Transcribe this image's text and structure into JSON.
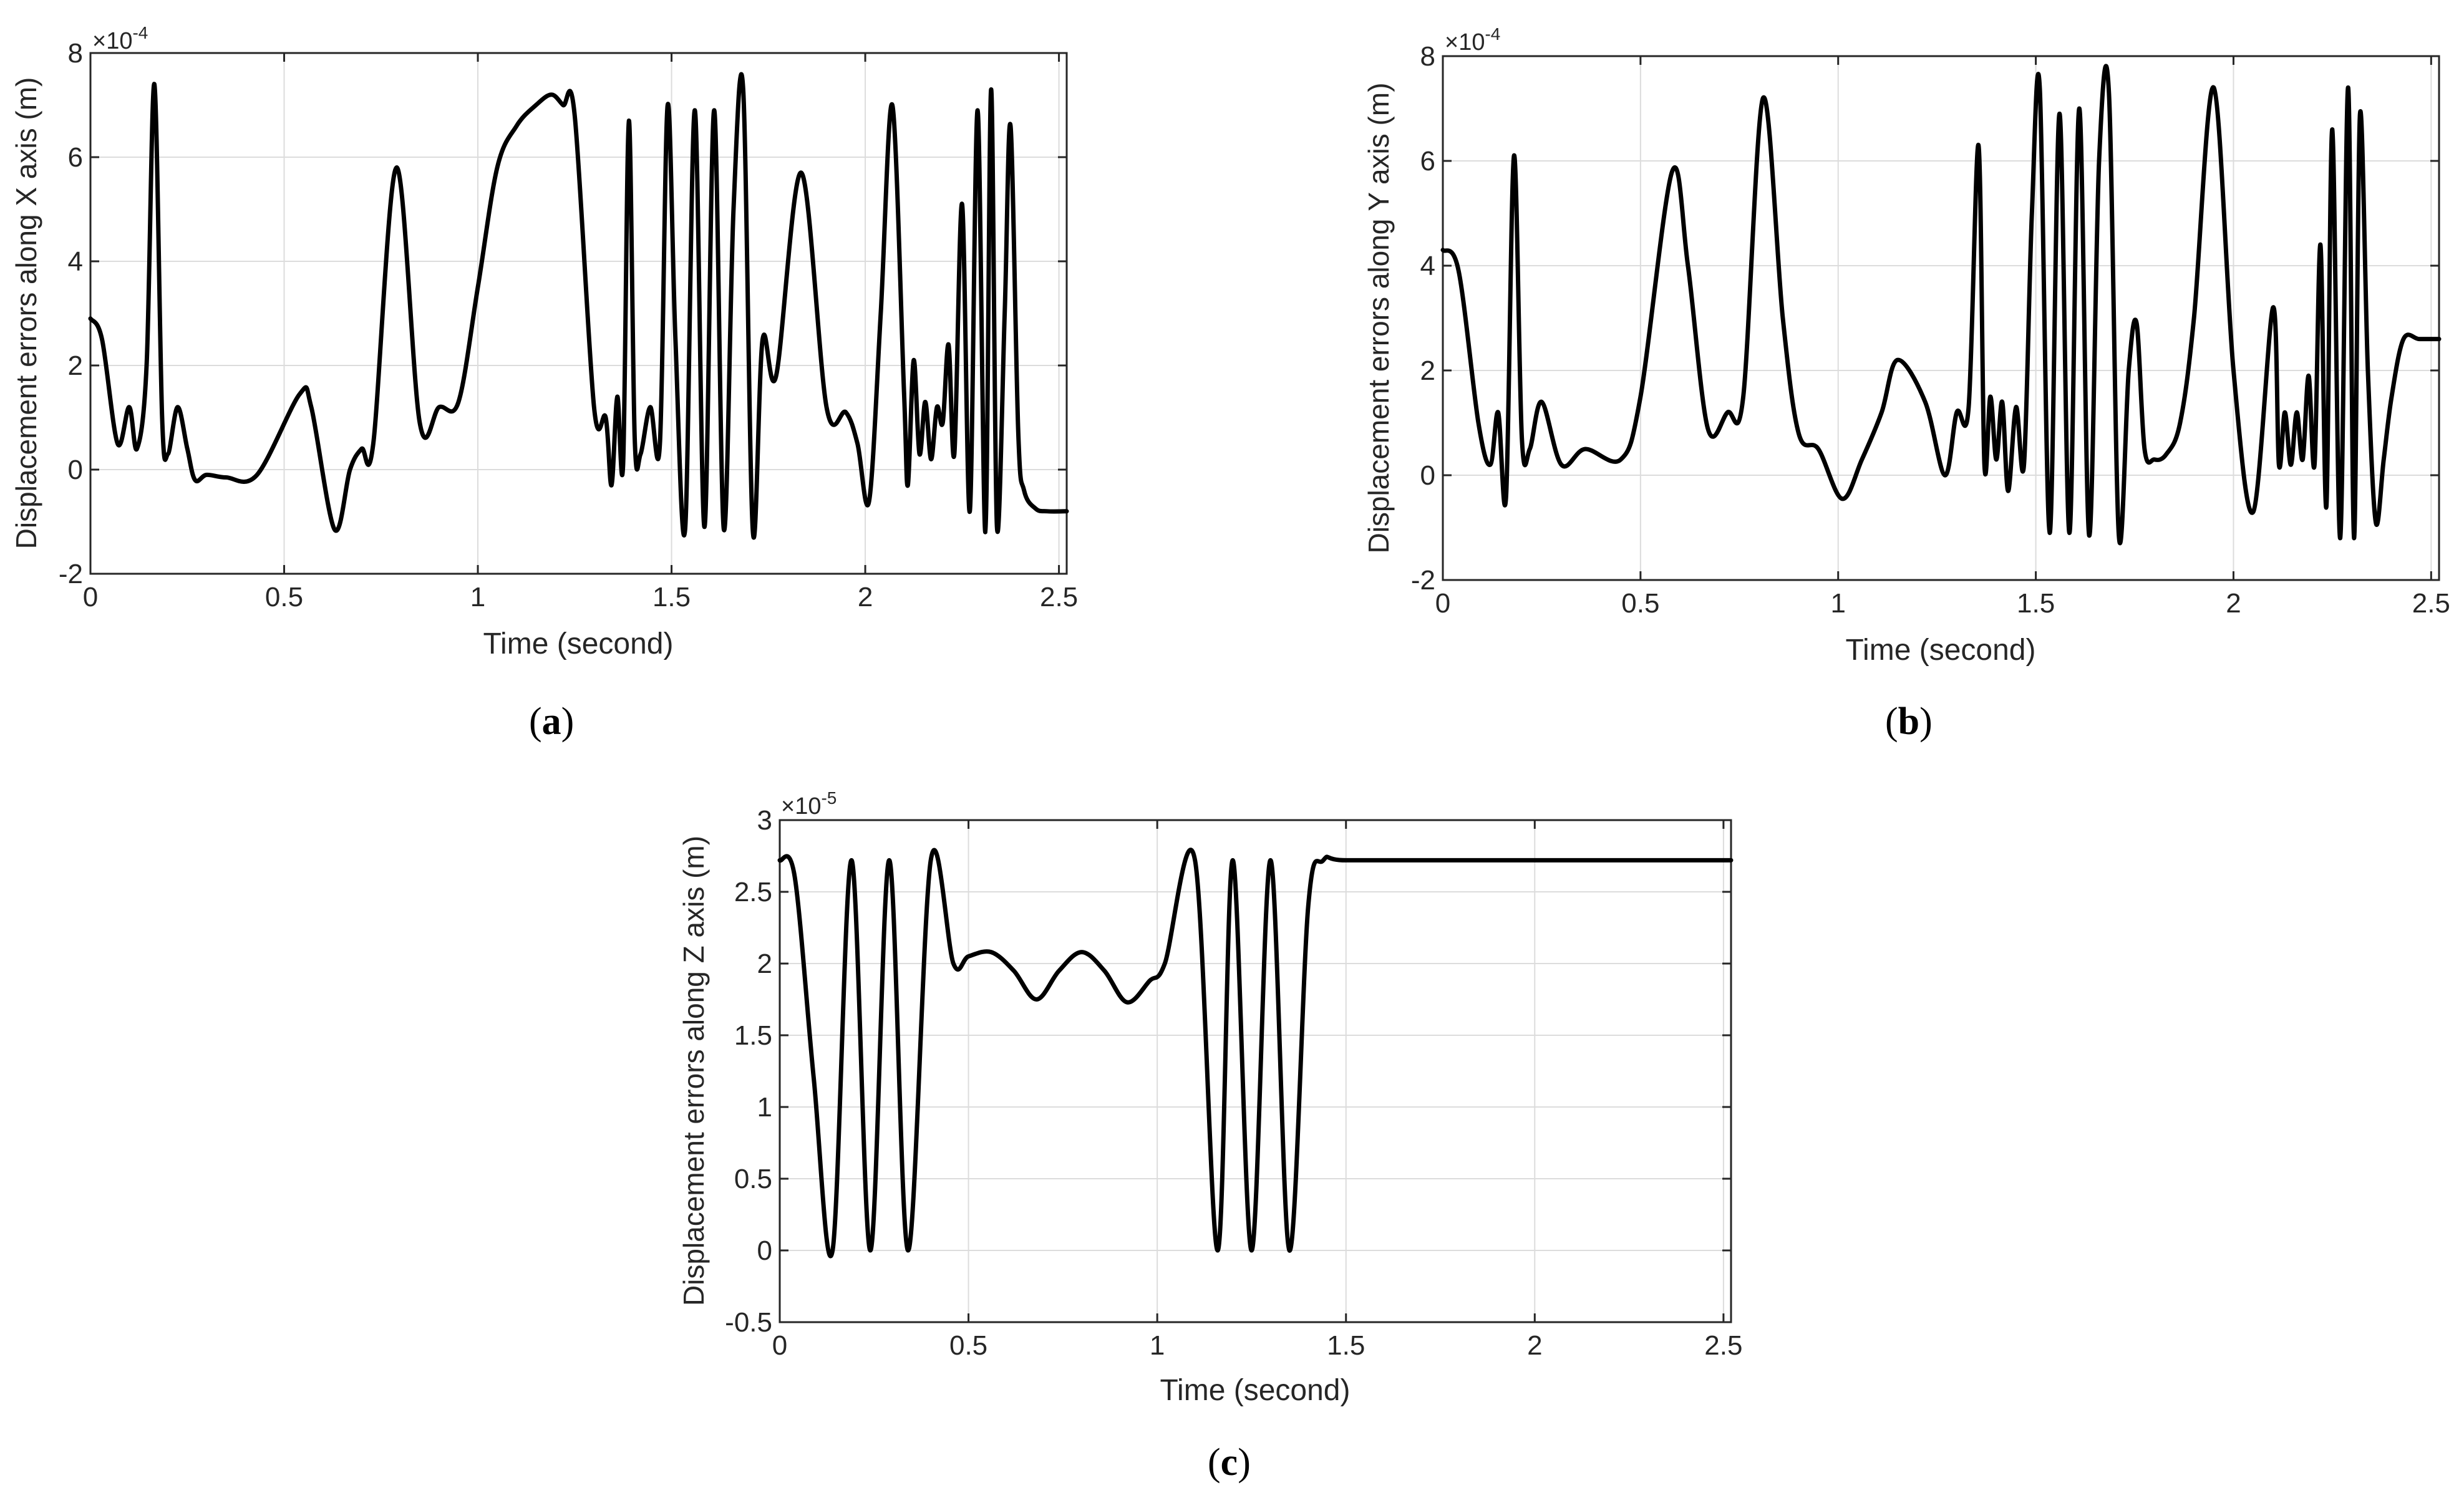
{
  "captions": {
    "a": "a",
    "b": "b",
    "c": "c"
  },
  "chart_data": [
    {
      "id": "a",
      "type": "line",
      "xlabel": "Time (second)",
      "ylabel": "Displacement errors along X axis (m)",
      "exponent_label": "×10",
      "exponent": "-4",
      "xlim": [
        0,
        2.52
      ],
      "ylim": [
        -2,
        8
      ],
      "xticks": [
        0,
        0.5,
        1,
        1.5,
        2,
        2.5
      ],
      "xtick_labels": [
        "0",
        "0.5",
        "1",
        "1.5",
        "2",
        "2.5"
      ],
      "yticks": [
        -2,
        0,
        2,
        4,
        6,
        8
      ],
      "ytick_labels": [
        "-2",
        "0",
        "2",
        "4",
        "6",
        "8"
      ],
      "grid": true,
      "color": "#000000",
      "x": [
        0,
        0.03,
        0.07,
        0.1,
        0.12,
        0.145,
        0.165,
        0.185,
        0.2,
        0.225,
        0.25,
        0.27,
        0.3,
        0.35,
        0.43,
        0.54,
        0.57,
        0.63,
        0.67,
        0.7,
        0.73,
        0.79,
        0.85,
        0.9,
        0.95,
        1.0,
        1.05,
        1.1,
        1.15,
        1.19,
        1.22,
        1.25,
        1.3,
        1.33,
        1.345,
        1.36,
        1.375,
        1.39,
        1.405,
        1.42,
        1.445,
        1.47,
        1.49,
        1.51,
        1.535,
        1.56,
        1.585,
        1.61,
        1.635,
        1.66,
        1.685,
        1.71,
        1.735,
        1.77,
        1.835,
        1.9,
        1.95,
        1.98,
        2.01,
        2.04,
        2.07,
        2.1,
        2.11,
        2.125,
        2.14,
        2.155,
        2.17,
        2.185,
        2.2,
        2.215,
        2.23,
        2.25,
        2.27,
        2.29,
        2.31,
        2.325,
        2.34,
        2.36,
        2.375,
        2.395,
        2.41,
        2.44,
        2.47,
        2.52
      ],
      "y": [
        2.9,
        2.5,
        0.5,
        1.2,
        0.4,
        2.0,
        7.4,
        1.0,
        0.3,
        1.2,
        0.4,
        -0.2,
        -0.1,
        -0.15,
        -0.1,
        1.45,
        1.2,
        -1.15,
        0.0,
        0.4,
        0.5,
        5.8,
        0.9,
        1.2,
        1.3,
        3.5,
        5.8,
        6.6,
        7.0,
        7.2,
        7.0,
        6.8,
        1.2,
        1.0,
        -0.3,
        1.4,
        0.1,
        6.7,
        0.6,
        0.3,
        1.2,
        0.5,
        7.0,
        2.5,
        -1.15,
        6.9,
        -1.1,
        6.9,
        -1.15,
        5.0,
        7.3,
        -1.2,
        2.5,
        1.8,
        5.7,
        1.2,
        1.1,
        0.5,
        -0.6,
        3.0,
        7.0,
        1.5,
        -0.3,
        2.1,
        0.3,
        1.3,
        0.2,
        1.2,
        0.9,
        2.4,
        0.3,
        5.1,
        -0.8,
        6.9,
        -1.2,
        7.3,
        -1.1,
        3.0,
        6.6,
        0.7,
        -0.4,
        -0.75,
        -0.8,
        -0.8
      ]
    },
    {
      "id": "b",
      "type": "line",
      "xlabel": "Time (second)",
      "ylabel": "Displacement errors along Y axis (m)",
      "exponent_label": "×10",
      "exponent": "-4",
      "xlim": [
        0,
        2.52
      ],
      "ylim": [
        -2,
        8
      ],
      "xticks": [
        0,
        0.5,
        1,
        1.5,
        2,
        2.5
      ],
      "xtick_labels": [
        "0",
        "0.5",
        "1",
        "1.5",
        "2",
        "2.5"
      ],
      "yticks": [
        -2,
        0,
        2,
        4,
        6,
        8
      ],
      "ytick_labels": [
        "-2",
        "0",
        "2",
        "4",
        "6",
        "8"
      ],
      "grid": true,
      "color": "#000000",
      "x": [
        0,
        0.04,
        0.09,
        0.12,
        0.14,
        0.16,
        0.18,
        0.2,
        0.22,
        0.25,
        0.3,
        0.36,
        0.45,
        0.5,
        0.58,
        0.62,
        0.67,
        0.72,
        0.76,
        0.81,
        0.86,
        0.9,
        0.95,
        1.01,
        1.06,
        1.11,
        1.15,
        1.22,
        1.27,
        1.3,
        1.33,
        1.355,
        1.37,
        1.385,
        1.4,
        1.415,
        1.43,
        1.45,
        1.47,
        1.49,
        1.51,
        1.535,
        1.56,
        1.585,
        1.61,
        1.635,
        1.66,
        1.685,
        1.71,
        1.735,
        1.755,
        1.775,
        1.8,
        1.83,
        1.865,
        1.9,
        1.95,
        2.0,
        2.05,
        2.1,
        2.115,
        2.13,
        2.145,
        2.16,
        2.175,
        2.19,
        2.205,
        2.22,
        2.235,
        2.25,
        2.27,
        2.29,
        2.305,
        2.32,
        2.34,
        2.36,
        2.38,
        2.4,
        2.43,
        2.47,
        2.52
      ],
      "y": [
        4.3,
        3.9,
        1.0,
        0.2,
        1.2,
        -0.4,
        6.1,
        0.7,
        0.5,
        1.4,
        0.2,
        0.5,
        0.3,
        1.5,
        5.8,
        4.0,
        0.9,
        1.2,
        1.5,
        7.2,
        3.0,
        0.8,
        0.5,
        -0.45,
        0.3,
        1.2,
        2.2,
        1.4,
        0.0,
        1.2,
        1.3,
        6.3,
        0.2,
        1.5,
        0.3,
        1.4,
        -0.3,
        1.3,
        0.2,
        5.0,
        7.4,
        -1.1,
        6.9,
        -1.1,
        7.0,
        -1.15,
        6.0,
        7.3,
        -1.15,
        2.0,
        2.9,
        0.5,
        0.3,
        0.4,
        1.0,
        3.0,
        7.4,
        2.0,
        -0.7,
        3.2,
        0.2,
        1.2,
        0.2,
        1.2,
        0.3,
        1.9,
        0.2,
        4.4,
        -0.6,
        6.6,
        -1.2,
        7.4,
        -1.2,
        6.9,
        2.0,
        -0.9,
        0.3,
        1.5,
        2.6,
        2.6,
        2.6
      ]
    },
    {
      "id": "c",
      "type": "line",
      "xlabel": "Time (second)",
      "ylabel": "Displacement errors along Z axis (m)",
      "exponent_label": "×10",
      "exponent": "-5",
      "xlim": [
        0,
        2.52
      ],
      "ylim": [
        -0.5,
        3
      ],
      "xticks": [
        0,
        0.5,
        1,
        1.5,
        2,
        2.5
      ],
      "xtick_labels": [
        "0",
        "0.5",
        "1",
        "1.5",
        "2",
        "2.5"
      ],
      "yticks": [
        -0.5,
        0,
        0.5,
        1,
        1.5,
        2,
        2.5,
        3
      ],
      "ytick_labels": [
        "-0.5",
        "0",
        "0.5",
        "1",
        "1.5",
        "2",
        "2.5",
        "3"
      ],
      "grid": true,
      "color": "#000000",
      "x": [
        0,
        0.04,
        0.09,
        0.14,
        0.19,
        0.24,
        0.29,
        0.34,
        0.4,
        0.46,
        0.5,
        0.56,
        0.62,
        0.68,
        0.74,
        0.8,
        0.86,
        0.92,
        0.98,
        1.02,
        1.1,
        1.16,
        1.2,
        1.25,
        1.3,
        1.35,
        1.4,
        1.44,
        1.5,
        1.8,
        2.2,
        2.52
      ],
      "y": [
        2.72,
        2.6,
        1.2,
        0.0,
        2.72,
        0.0,
        2.72,
        0.0,
        2.72,
        2.0,
        2.05,
        2.08,
        1.95,
        1.75,
        1.95,
        2.08,
        1.95,
        1.73,
        1.88,
        2.0,
        2.72,
        0.0,
        2.72,
        0.0,
        2.72,
        0.0,
        2.4,
        2.72,
        2.72,
        2.72,
        2.72,
        2.72
      ]
    }
  ]
}
